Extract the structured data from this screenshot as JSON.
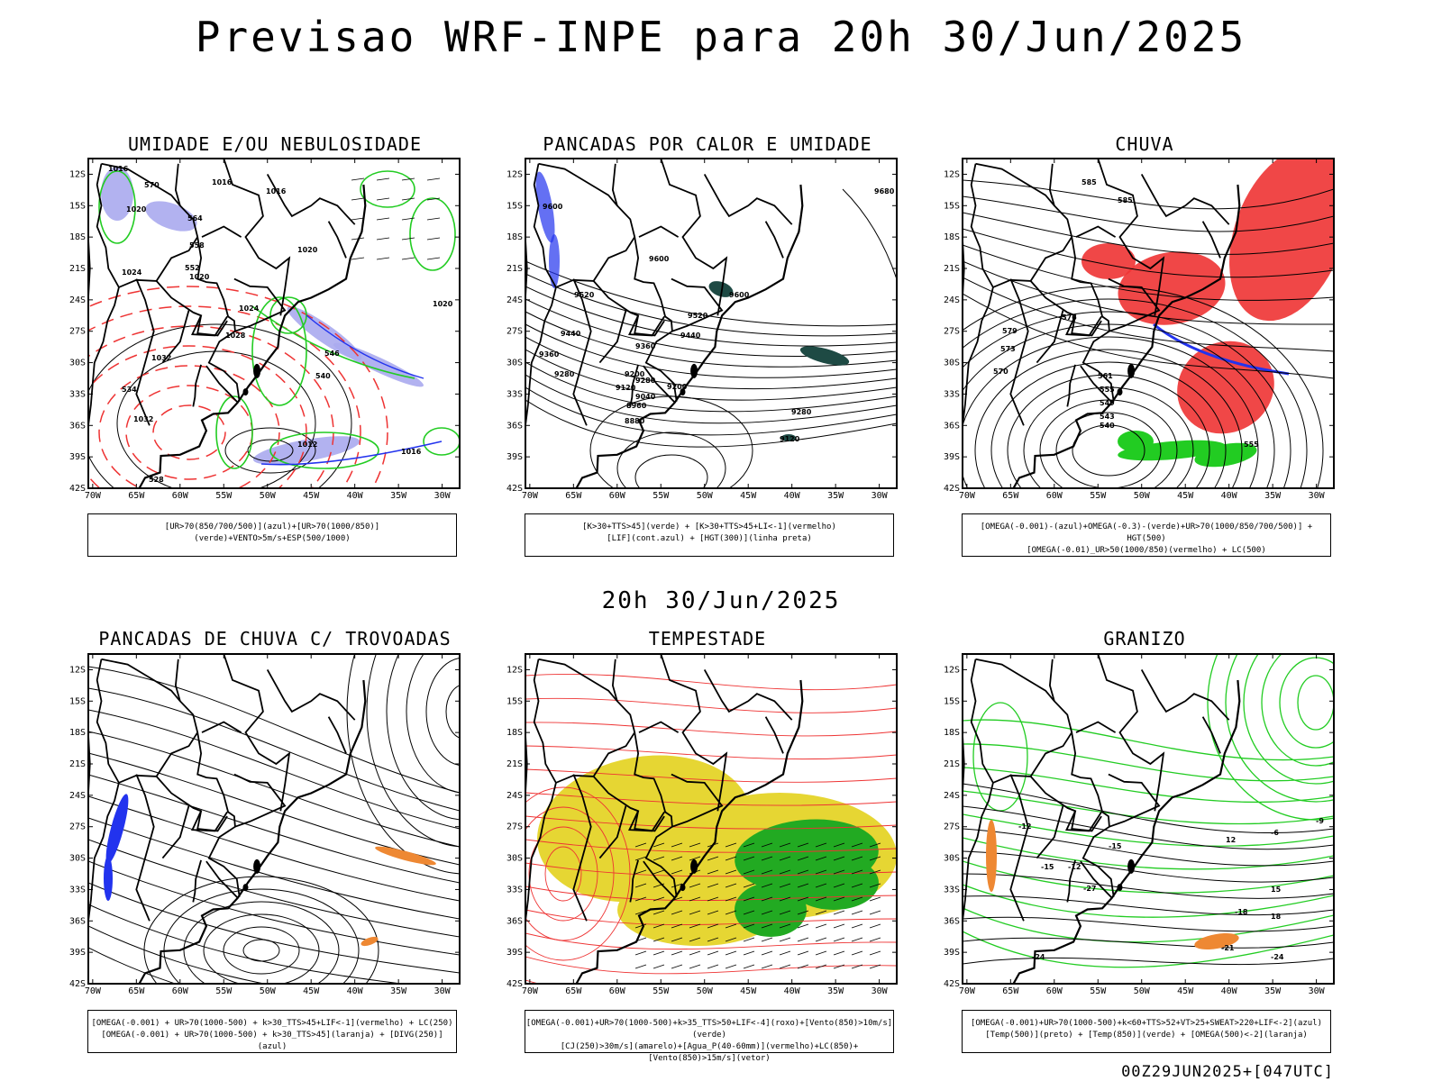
{
  "main_title": "Previsao WRF-INPE  para 20h 30/Jun/2025",
  "mid_title": "20h 30/Jun/2025",
  "footer": "00Z29JUN2025+[047UTC]",
  "lat_ticks": [
    "12S",
    "15S",
    "18S",
    "21S",
    "24S",
    "27S",
    "30S",
    "33S",
    "36S",
    "39S",
    "42S"
  ],
  "lon_ticks": [
    "70W",
    "65W",
    "60W",
    "55W",
    "50W",
    "45W",
    "40W",
    "35W",
    "30W"
  ],
  "colors": {
    "blue": "#2233ee",
    "green": "#22cc22",
    "red": "#ee3333",
    "orange": "#ee8833",
    "yellow": "#e6d633",
    "teal": "#1e4a44",
    "lavender": "#aaaaee"
  },
  "panels": [
    {
      "title": "UMIDADE E/OU NEBULOSIDADE",
      "legend": [
        "[UR>70(850/700/500)](azul)+[UR>70(1000/850)](verde)+VENTO>5m/s+ESP(500/1000)"
      ],
      "labels": [
        "1016",
        "1016",
        "1016",
        "1020",
        "1020",
        "1020",
        "1020",
        "1024",
        "1024",
        "1028",
        "1032",
        "1032",
        "1012",
        "1016",
        "570",
        "564",
        "558",
        "552",
        "546",
        "540",
        "534",
        "528"
      ]
    },
    {
      "title": "PANCADAS POR CALOR E UMIDADE",
      "legend": [
        "[K>30+TTS>45](verde) + [K>30+TTS>45+LI<-1](vermelho)",
        "[LIF](cont.azul) + [HGT(300)](linha preta)"
      ],
      "labels": [
        "9680",
        "9600",
        "9600",
        "9520",
        "9520",
        "9440",
        "9440",
        "9360",
        "9360",
        "9280",
        "9280",
        "9200",
        "9200",
        "9120",
        "9120",
        "9040",
        "8960",
        "8880",
        "9600",
        "9280"
      ]
    },
    {
      "title": "CHUVA",
      "legend": [
        "[OMEGA(-0.001)-(azul)+OMEGA(-0.3)-(verde)+UR>70(1000/850/700/500)] + HGT(500)",
        "[OMEGA(-0.01)_UR>50(1000/850)(vermelho) + LC(500)"
      ],
      "labels": [
        "585",
        "585",
        "579",
        "576",
        "573",
        "570",
        "561",
        "555",
        "549",
        "543",
        "540",
        "555"
      ]
    },
    {
      "title": "PANCADAS DE CHUVA C/ TROVOADAS",
      "legend": [
        "[OMEGA(-0.001) + UR>70(1000-500) + k>30_TTS>45+LIF<-1](vermelho) + LC(250)",
        "[OMEGA(-0.001) + UR>70(1000-500) + k>30_TTS>45](laranja) + [DIVG(250)](azul)"
      ],
      "labels": []
    },
    {
      "title": "TEMPESTADE",
      "legend": [
        "[OMEGA(-0.001)+UR>70(1000-500)+k>35_TTS>50+LIF<-4](roxo)+[Vento(850)>10m/s](verde)",
        "[CJ(250)>30m/s](amarelo)+[Agua_P(40-60mm)](vermelho)+LC(850)+[Vento(850)>15m/s](vetor)"
      ],
      "labels": []
    },
    {
      "title": "GRANIZO",
      "legend": [
        "[OMEGA(-0.001)+UR>70(1000-500)+k<60+TTS>52+VT>25+SWEAT>220+LIF<-2](azul)",
        "[Temp(500)](preto) + [Temp(850)](verde) + [OMEGA(500)<-2](laranja)"
      ],
      "labels": [
        "-12",
        "-12",
        "-15",
        "-15",
        "-18",
        "-21",
        "-24",
        "-27",
        "-24",
        "-9",
        "-6",
        "12",
        "15",
        "18"
      ]
    }
  ]
}
